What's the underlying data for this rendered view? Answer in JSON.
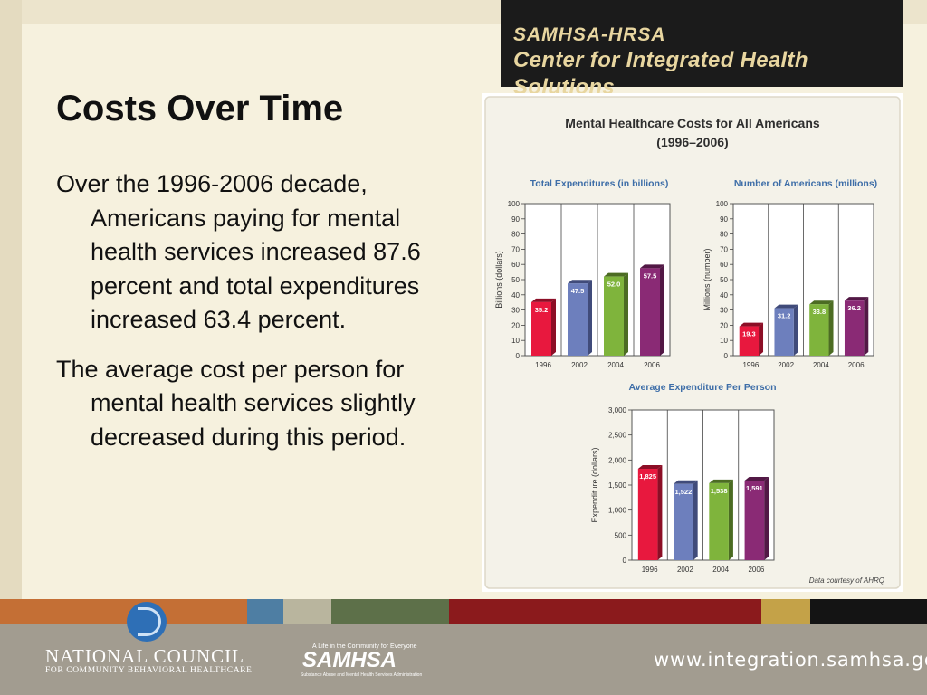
{
  "header": {
    "line1": "SAMHSA-HRSA",
    "line2": "Center for Integrated Health Solutions"
  },
  "slide": {
    "title": "Costs Over Time",
    "paragraphs": [
      "Over the 1996-2006 decade, Americans paying for mental health services increased 87.6 percent and total expenditures increased 63.4 percent.",
      "The average cost per person for mental health services slightly decreased during this period."
    ]
  },
  "chart_data": {
    "title": "Mental Healthcare Costs for All Americans",
    "subtitle": "(1996–2006)",
    "note": "Data courtesy of AHRQ",
    "charts": [
      {
        "type": "bar",
        "title": "Total Expenditures (in billions)",
        "ylabel": "Billions (dollars)",
        "categories": [
          "1996",
          "2002",
          "2004",
          "2006"
        ],
        "values": [
          35.2,
          47.5,
          52.0,
          57.5
        ],
        "labels": [
          "35.2",
          "47.5",
          "52.0",
          "57.5"
        ],
        "ylim": [
          0,
          100
        ],
        "yticks": [
          0,
          10,
          20,
          30,
          40,
          50,
          60,
          70,
          80,
          90,
          100
        ],
        "ytick_labels": [
          "0",
          "10",
          "20",
          "30",
          "40",
          "50",
          "60",
          "70",
          "80",
          "90",
          "100"
        ]
      },
      {
        "type": "bar",
        "title": "Number of Americans (millions)",
        "ylabel": "Millions (number)",
        "categories": [
          "1996",
          "2002",
          "2004",
          "2006"
        ],
        "values": [
          19.3,
          31.2,
          33.8,
          36.2
        ],
        "labels": [
          "19.3",
          "31.2",
          "33.8",
          "36.2"
        ],
        "ylim": [
          0,
          100
        ],
        "yticks": [
          0,
          10,
          20,
          30,
          40,
          50,
          60,
          70,
          80,
          90,
          100
        ],
        "ytick_labels": [
          "0",
          "10",
          "20",
          "30",
          "40",
          "50",
          "60",
          "70",
          "80",
          "90",
          "100"
        ]
      },
      {
        "type": "bar",
        "title": "Average Expenditure Per Person",
        "ylabel": "Expenditure (dollars)",
        "categories": [
          "1996",
          "2002",
          "2004",
          "2006"
        ],
        "values": [
          1825,
          1522,
          1538,
          1591
        ],
        "labels": [
          "1,825",
          "1,522",
          "1,538",
          "1,591"
        ],
        "ylim": [
          0,
          3000
        ],
        "yticks": [
          0,
          500,
          1000,
          1500,
          2000,
          2500,
          3000
        ],
        "ytick_labels": [
          "0",
          "500",
          "1,000",
          "1,500",
          "2,000",
          "2,500",
          "3,000"
        ]
      }
    ],
    "bar_colors": [
      "#e8183e",
      "#6d7fbd",
      "#7fb43c",
      "#8a2a75"
    ],
    "bar_side_colors": [
      "#8c0e26",
      "#404b7a",
      "#4c6c23",
      "#521845"
    ],
    "title_color": "#2e2e2e",
    "subtitle_color": "#3e6ea8"
  },
  "footer": {
    "org_name": "NATIONAL COUNCIL",
    "org_sub": "FOR COMMUNITY BEHAVIORAL HEALTHCARE",
    "samhsa_tagline": "A Life in the Community for Everyone",
    "samhsa_logo": "SAMHSA",
    "samhsa_sub": "Substance Abuse and Mental Health Services Administration",
    "url": "www.integration.samhsa.gov",
    "stripe_colors": [
      "#c46f35",
      "#4e7ea3",
      "#b9b59e",
      "#5d7049",
      "#8b1a1c",
      "#c4a248",
      "#141414"
    ]
  }
}
